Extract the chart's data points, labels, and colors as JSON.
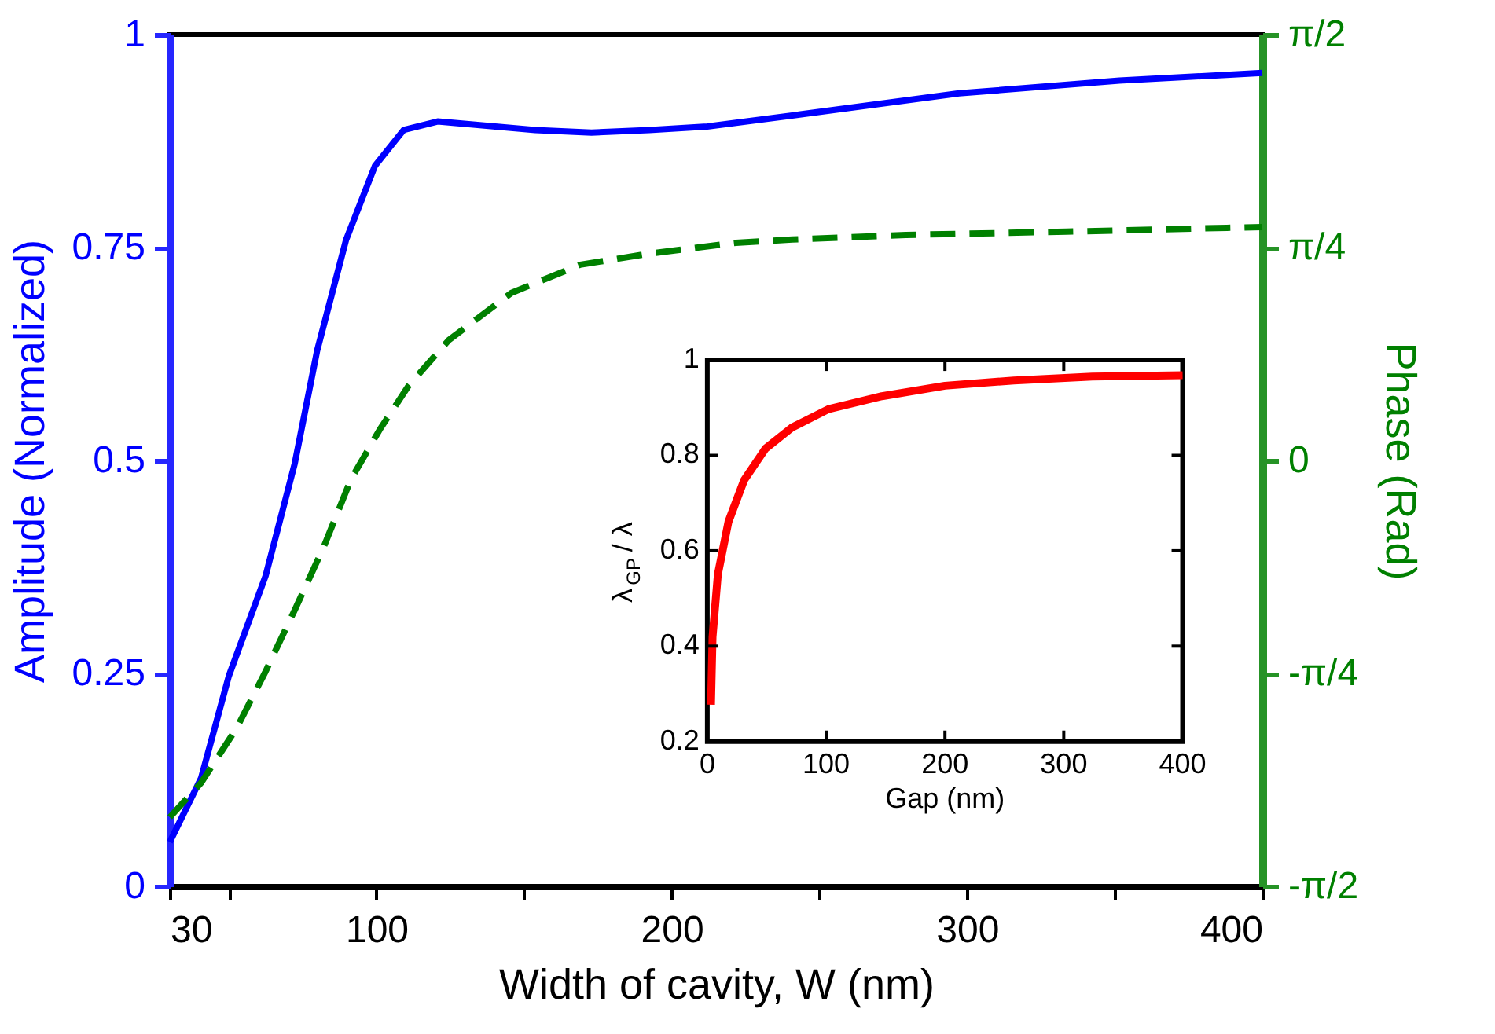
{
  "chart_data": [
    {
      "type": "line",
      "xlabel": "Width of cavity, W (nm)",
      "ylabel": "Amplitude (Normalized)",
      "y2label": "Phase (Rad)",
      "xlim": [
        30,
        400
      ],
      "xticks": [
        30,
        {
          "value": 50,
          "label": null
        },
        100,
        {
          "value": 150,
          "label": null
        },
        200,
        {
          "value": 250,
          "label": null
        },
        300,
        {
          "value": 350,
          "label": null
        },
        400
      ],
      "ylim": [
        0,
        1
      ],
      "yticks": [
        0,
        0.25,
        0.5,
        0.75,
        1
      ],
      "y2lim": [
        -1.5708,
        1.5708
      ],
      "y2ticks": [
        {
          "value": -1.5708,
          "label": "-π/2"
        },
        {
          "value": -0.7854,
          "label": "-π/4"
        },
        0,
        {
          "value": 0.7854,
          "label": "π/4"
        },
        {
          "value": 1.5708,
          "label": "π/2"
        }
      ],
      "series": [
        {
          "color": "#0000ff",
          "axis": "y",
          "line_style": "solid",
          "x": [
            30,
            40.6,
            50,
            62.5,
            72.3,
            79.9,
            89.7,
            99.5,
            109.2,
            120.7,
            153.8,
            172.8,
            192.4,
            212,
            240.8,
            297.3,
            351.6,
            400
          ],
          "values": [
            0.052,
            0.127,
            0.247,
            0.365,
            0.496,
            0.629,
            0.759,
            0.846,
            0.888,
            0.898,
            0.888,
            0.885,
            0.888,
            0.892,
            0.905,
            0.931,
            0.946,
            0.955
          ]
        },
        {
          "color": "#008000",
          "axis": "y2",
          "line_style": "dashed",
          "x": [
            30,
            40.6,
            52.7,
            62.5,
            72.3,
            82.1,
            91.3,
            101.1,
            110.9,
            124.5,
            145.7,
            169,
            192.4,
            221.7,
            240.8,
            279.3,
            333.7,
            388,
            400
          ],
          "values": [
            -1.316,
            -1.189,
            -0.986,
            -0.777,
            -0.552,
            -0.32,
            -0.071,
            0.114,
            0.276,
            0.444,
            0.618,
            0.722,
            0.763,
            0.803,
            0.815,
            0.832,
            0.844,
            0.858,
            0.861
          ]
        }
      ]
    },
    {
      "type": "line",
      "xlabel": "Gap (nm)",
      "ylabel": "λ$_{GP}$ / λ",
      "xlim": [
        0,
        400
      ],
      "xticks": [
        0,
        100,
        200,
        300,
        400
      ],
      "ylim": [
        0.2,
        1
      ],
      "yticks": [
        0.2,
        0.4,
        0.6,
        0.8,
        1
      ],
      "series": [
        {
          "color": "#ff0000",
          "line_style": "solid",
          "x": [
            3.1,
            4.4,
            8.9,
            17.8,
            31,
            48.9,
            71,
            102,
            147,
            200,
            258,
            324,
            400
          ],
          "values": [
            0.277,
            0.419,
            0.551,
            0.661,
            0.748,
            0.814,
            0.858,
            0.897,
            0.924,
            0.946,
            0.957,
            0.965,
            0.968
          ]
        }
      ]
    }
  ]
}
